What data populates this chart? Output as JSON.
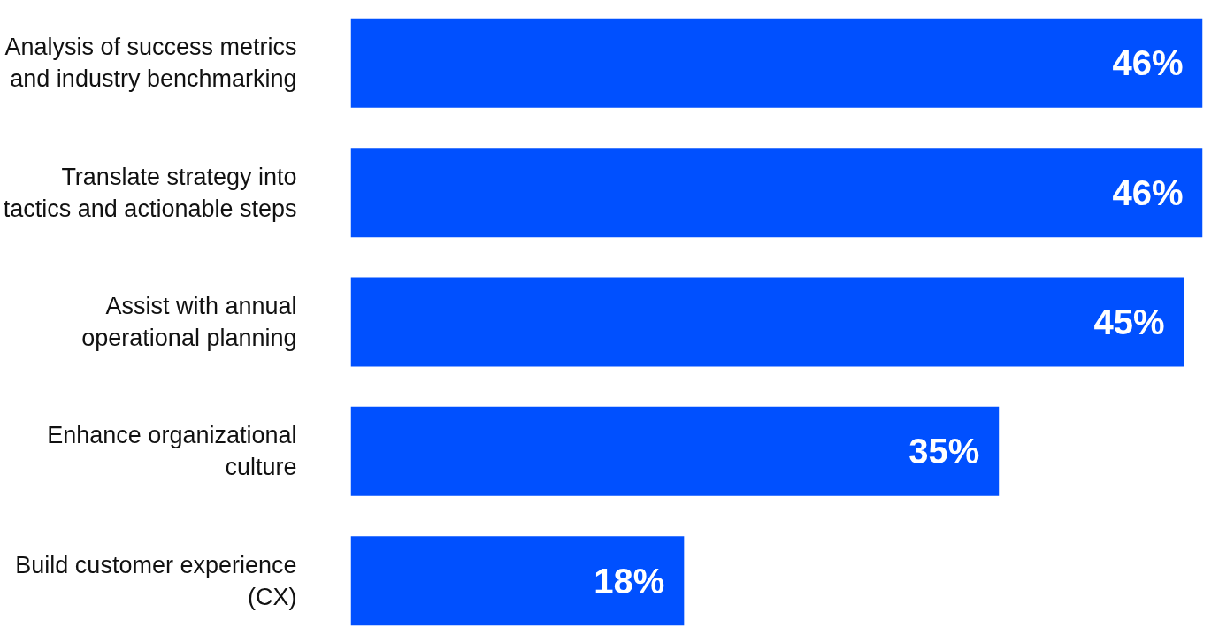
{
  "chart_data": {
    "type": "bar",
    "orientation": "horizontal",
    "categories": [
      "Analysis of success metrics and industry benchmarking",
      "Translate strategy into tactics and actionable steps",
      "Assist with annual operational planning",
      "Enhance organizational culture",
      "Build customer experience (CX)"
    ],
    "values": [
      46,
      46,
      45,
      35,
      18
    ],
    "color": "#0050ff",
    "value_labels": [
      "46%",
      "46%",
      "45%",
      "35%",
      "18%"
    ]
  }
}
